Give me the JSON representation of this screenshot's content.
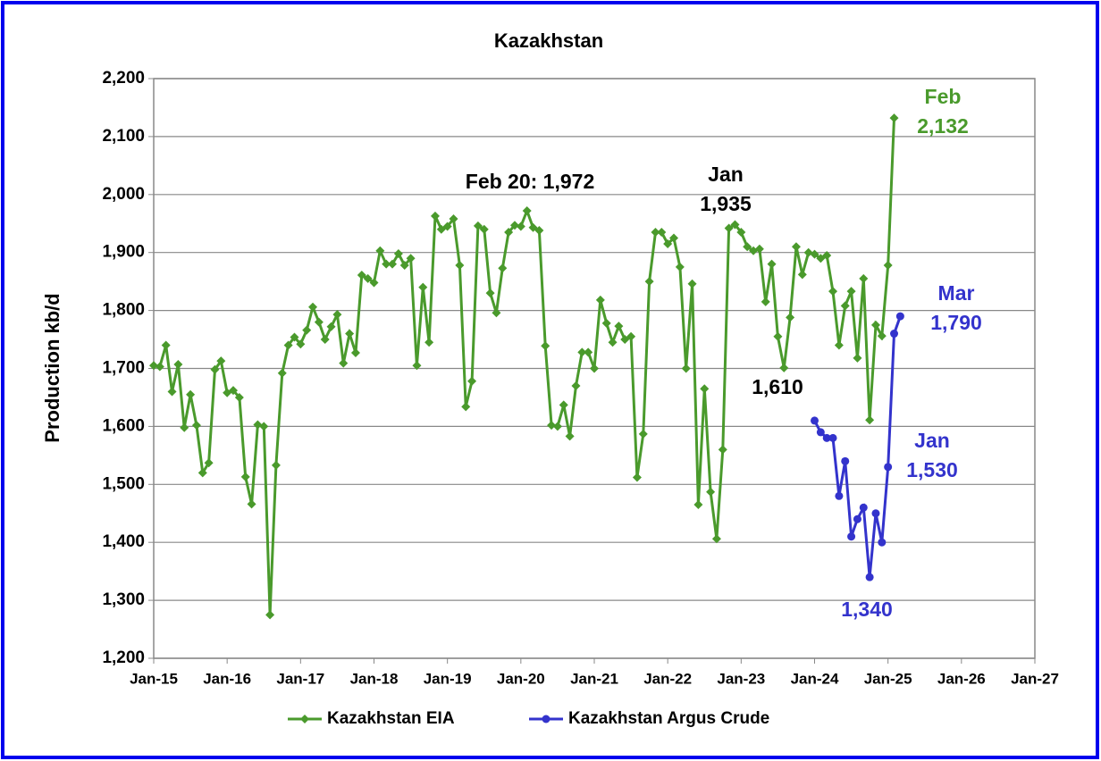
{
  "chart_data": {
    "type": "line",
    "title": "Kazakhstan",
    "y_label": "Production kb/d",
    "xlim": [
      "2015-01",
      "2027-01"
    ],
    "xticks": [
      {
        "value": "2015-01",
        "label": "Jan-15"
      },
      {
        "value": "2016-01",
        "label": "Jan-16"
      },
      {
        "value": "2017-01",
        "label": "Jan-17"
      },
      {
        "value": "2018-01",
        "label": "Jan-18"
      },
      {
        "value": "2019-01",
        "label": "Jan-19"
      },
      {
        "value": "2020-01",
        "label": "Jan-20"
      },
      {
        "value": "2021-01",
        "label": "Jan-21"
      },
      {
        "value": "2022-01",
        "label": "Jan-22"
      },
      {
        "value": "2023-01",
        "label": "Jan-23"
      },
      {
        "value": "2024-01",
        "label": "Jan-24"
      },
      {
        "value": "2025-01",
        "label": "Jan-25"
      },
      {
        "value": "2026-01",
        "label": "Jan-26"
      },
      {
        "value": "2027-01",
        "label": "Jan-27"
      }
    ],
    "ylim": [
      1200,
      2200
    ],
    "yticks": [
      {
        "value": 1200,
        "label": "1,200"
      },
      {
        "value": 1300,
        "label": "1,300"
      },
      {
        "value": 1400,
        "label": "1,400"
      },
      {
        "value": 1500,
        "label": "1,500"
      },
      {
        "value": 1600,
        "label": "1,600"
      },
      {
        "value": 1700,
        "label": "1,700"
      },
      {
        "value": 1800,
        "label": "1,800"
      },
      {
        "value": 1900,
        "label": "1,900"
      },
      {
        "value": 2000,
        "label": "2,000"
      },
      {
        "value": 2100,
        "label": "2,100"
      },
      {
        "value": 2200,
        "label": "2,200"
      }
    ],
    "grid": true,
    "series": [
      {
        "name": "Kazakhstan EIA",
        "color": "#4a9a2c",
        "marker": "diamond",
        "x": [
          "2015-01",
          "2015-02",
          "2015-03",
          "2015-04",
          "2015-05",
          "2015-06",
          "2015-07",
          "2015-08",
          "2015-09",
          "2015-10",
          "2015-11",
          "2015-12",
          "2016-01",
          "2016-02",
          "2016-03",
          "2016-04",
          "2016-05",
          "2016-06",
          "2016-07",
          "2016-08",
          "2016-09",
          "2016-10",
          "2016-11",
          "2016-12",
          "2017-01",
          "2017-02",
          "2017-03",
          "2017-04",
          "2017-05",
          "2017-06",
          "2017-07",
          "2017-08",
          "2017-09",
          "2017-10",
          "2017-11",
          "2017-12",
          "2018-01",
          "2018-02",
          "2018-03",
          "2018-04",
          "2018-05",
          "2018-06",
          "2018-07",
          "2018-08",
          "2018-09",
          "2018-10",
          "2018-11",
          "2018-12",
          "2019-01",
          "2019-02",
          "2019-03",
          "2019-04",
          "2019-05",
          "2019-06",
          "2019-07",
          "2019-08",
          "2019-09",
          "2019-10",
          "2019-11",
          "2019-12",
          "2020-01",
          "2020-02",
          "2020-03",
          "2020-04",
          "2020-05",
          "2020-06",
          "2020-07",
          "2020-08",
          "2020-09",
          "2020-10",
          "2020-11",
          "2020-12",
          "2021-01",
          "2021-02",
          "2021-03",
          "2021-04",
          "2021-05",
          "2021-06",
          "2021-07",
          "2021-08",
          "2021-09",
          "2021-10",
          "2021-11",
          "2021-12",
          "2022-01",
          "2022-02",
          "2022-03",
          "2022-04",
          "2022-05",
          "2022-06",
          "2022-07",
          "2022-08",
          "2022-09",
          "2022-10",
          "2022-11",
          "2022-12",
          "2023-01",
          "2023-02",
          "2023-03",
          "2023-04",
          "2023-05",
          "2023-06",
          "2023-07",
          "2023-08",
          "2023-09",
          "2023-10",
          "2023-11",
          "2023-12",
          "2024-01",
          "2024-02",
          "2024-03",
          "2024-04",
          "2024-05",
          "2024-06",
          "2024-07",
          "2024-08",
          "2024-09",
          "2024-10",
          "2024-11",
          "2024-12",
          "2025-01",
          "2025-02"
        ],
        "values": [
          1705,
          1703,
          1740,
          1660,
          1707,
          1598,
          1655,
          1602,
          1520,
          1537,
          1698,
          1713,
          1658,
          1662,
          1650,
          1513,
          1466,
          1603,
          1600,
          1275,
          1533,
          1692,
          1740,
          1754,
          1742,
          1766,
          1806,
          1780,
          1750,
          1772,
          1793,
          1709,
          1760,
          1727,
          1861,
          1855,
          1848,
          1903,
          1880,
          1880,
          1898,
          1878,
          1890,
          1705,
          1840,
          1745,
          1963,
          1940,
          1945,
          1958,
          1878,
          1634,
          1678,
          1946,
          1940,
          1830,
          1796,
          1873,
          1935,
          1947,
          1945,
          1972,
          1943,
          1938,
          1739,
          1602,
          1600,
          1637,
          1583,
          1670,
          1728,
          1728,
          1700,
          1818,
          1778,
          1745,
          1773,
          1750,
          1755,
          1512,
          1587,
          1850,
          1935,
          1935,
          1915,
          1925,
          1875,
          1700,
          1846,
          1465,
          1665,
          1487,
          1406,
          1560,
          1942,
          1948,
          1935,
          1910,
          1903,
          1906,
          1815,
          1880,
          1755,
          1701,
          1788,
          1910,
          1862,
          1900,
          1897,
          1890,
          1895,
          1833,
          1740,
          1808,
          1833,
          1718,
          1855,
          1611,
          1775,
          1756,
          1878,
          2132
        ]
      },
      {
        "name": "Kazakhstan Argus Crude",
        "color": "#3333cc",
        "marker": "circle",
        "x": [
          "2024-01",
          "2024-02",
          "2024-03",
          "2024-04",
          "2024-05",
          "2024-06",
          "2024-07",
          "2024-08",
          "2024-09",
          "2024-10",
          "2024-11",
          "2024-12",
          "2025-01",
          "2025-02",
          "2025-03"
        ],
        "values": [
          1610,
          1590,
          1580,
          1580,
          1480,
          1540,
          1410,
          1440,
          1460,
          1340,
          1450,
          1400,
          1530,
          1760,
          1790
        ]
      }
    ],
    "annotations": [
      {
        "text": "Feb 20: 1,972",
        "color": "#000000"
      },
      {
        "text": "Jan",
        "color": "#000000"
      },
      {
        "text": "1,935",
        "color": "#000000"
      },
      {
        "text": "1,610",
        "color": "#000000"
      },
      {
        "text": "Feb",
        "color": "#4a9a2c"
      },
      {
        "text": "2,132",
        "color": "#4a9a2c"
      },
      {
        "text": "Mar",
        "color": "#3333cc"
      },
      {
        "text": "1,790",
        "color": "#3333cc"
      },
      {
        "text": "Jan",
        "color": "#3333cc"
      },
      {
        "text": "1,530",
        "color": "#3333cc"
      },
      {
        "text": "1,340",
        "color": "#3333cc"
      }
    ]
  }
}
